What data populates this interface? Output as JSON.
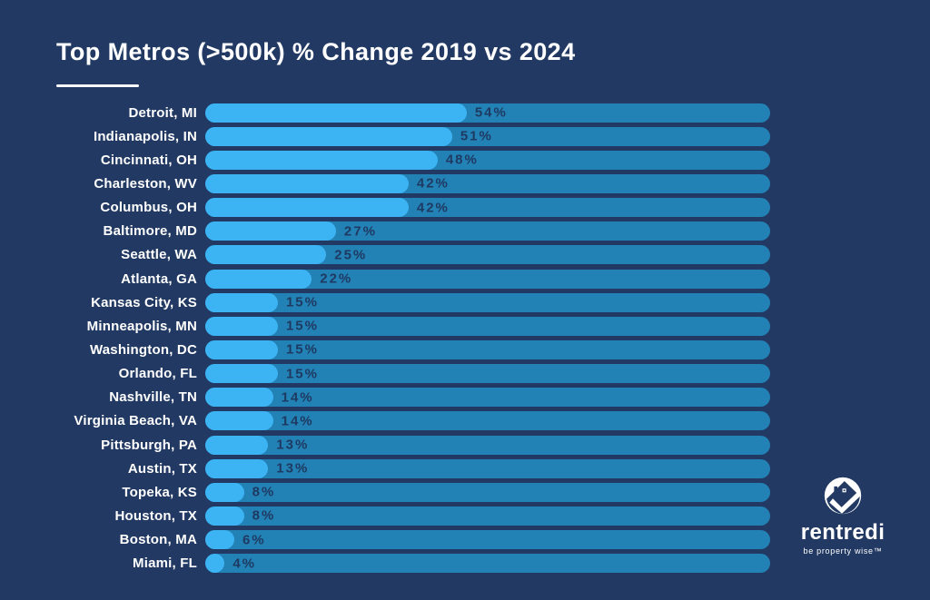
{
  "title": "Top Metros (>500k) % Change 2019 vs 2024",
  "chart_data": {
    "type": "bar",
    "orientation": "horizontal",
    "title": "Top Metros (>500k) % Change 2019 vs 2024",
    "categories": [
      "Detroit, MI",
      "Indianapolis, IN",
      "Cincinnati, OH",
      "Charleston, WV",
      "Columbus, OH",
      "Baltimore, MD",
      "Seattle, WA",
      "Atlanta, GA",
      "Kansas City, KS",
      "Minneapolis, MN",
      "Washington, DC",
      "Orlando, FL",
      "Nashville, TN",
      "Virginia Beach, VA",
      "Pittsburgh, PA",
      "Austin, TX",
      "Topeka, KS",
      "Houston, TX",
      "Boston, MA",
      "Miami, FL"
    ],
    "values": [
      54,
      51,
      48,
      42,
      42,
      27,
      25,
      22,
      15,
      15,
      15,
      15,
      14,
      14,
      13,
      13,
      8,
      8,
      6,
      4
    ],
    "value_suffix": "%",
    "xlabel": "",
    "ylabel": "",
    "xlim": [
      0,
      116
    ],
    "grid": false,
    "legend": false,
    "value_label_position": "right-of-bar-end"
  },
  "colors": {
    "background": "#223a63",
    "bar_fill": "#3cb4f3",
    "bar_track": "#2281b5",
    "value_text": "#1f3a62",
    "title_text": "#ffffff"
  },
  "branding": {
    "brand_name": "rentredi",
    "tagline": "be property wise™",
    "logo": "rentredi-house-check-logo"
  }
}
